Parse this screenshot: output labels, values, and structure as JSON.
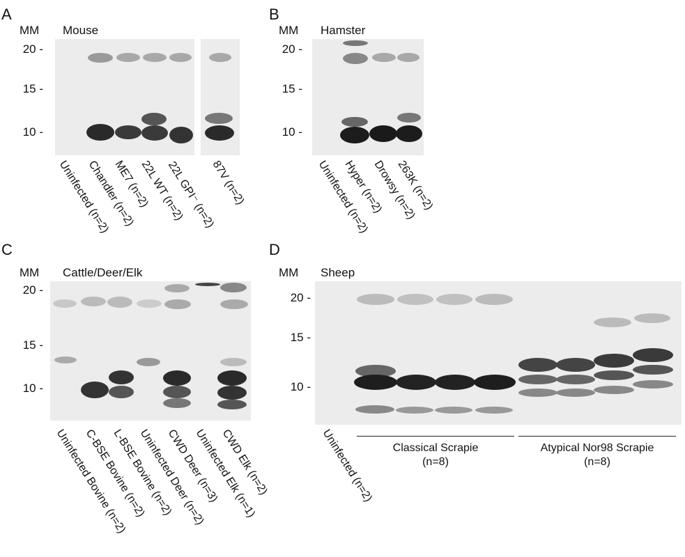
{
  "panels": {
    "A": {
      "letter": "A",
      "mm": "MM",
      "species": "Mouse",
      "ticks": [
        "20 -",
        "15 -",
        "10 -"
      ],
      "lanes": [
        "Uninfected (n=2)",
        "Chandler (n=2)",
        "ME7 (n=2)",
        "22L WT (n=2)",
        "22L GPI⁻ (n=2)",
        "87V (n=2)"
      ]
    },
    "B": {
      "letter": "B",
      "mm": "MM",
      "species": "Hamster",
      "ticks": [
        "20 -",
        "15 -",
        "10 -"
      ],
      "lanes": [
        "Uninfected (n=2)",
        "Hyper (n=2)",
        "Drowsy (n=2)",
        "263K (n=2)"
      ]
    },
    "C": {
      "letter": "C",
      "mm": "MM",
      "species": "Cattle/Deer/Elk",
      "ticks": [
        "20 -",
        "15 -",
        "10 -"
      ],
      "lanes": [
        "Uninfected Bovine (n=2)",
        "C-BSE Bovine (n=2)",
        "L-BSE Bovine (n=2)",
        "Uninfected Deer (n=2)",
        "CWD Deer (n=3)",
        "Uninfected Elk (n=1)",
        "CWD Elk (n=2)"
      ]
    },
    "D": {
      "letter": "D",
      "mm": "MM",
      "species": "Sheep",
      "ticks": [
        "20 -",
        "15 -",
        "10 -"
      ],
      "lanes": [
        "Uninfected (n=2)"
      ],
      "groups": [
        {
          "name": "Classical Scrapie",
          "n": "(n=8)"
        },
        {
          "name": "Atypical Nor98 Scrapie",
          "n": "(n=8)"
        }
      ]
    }
  }
}
